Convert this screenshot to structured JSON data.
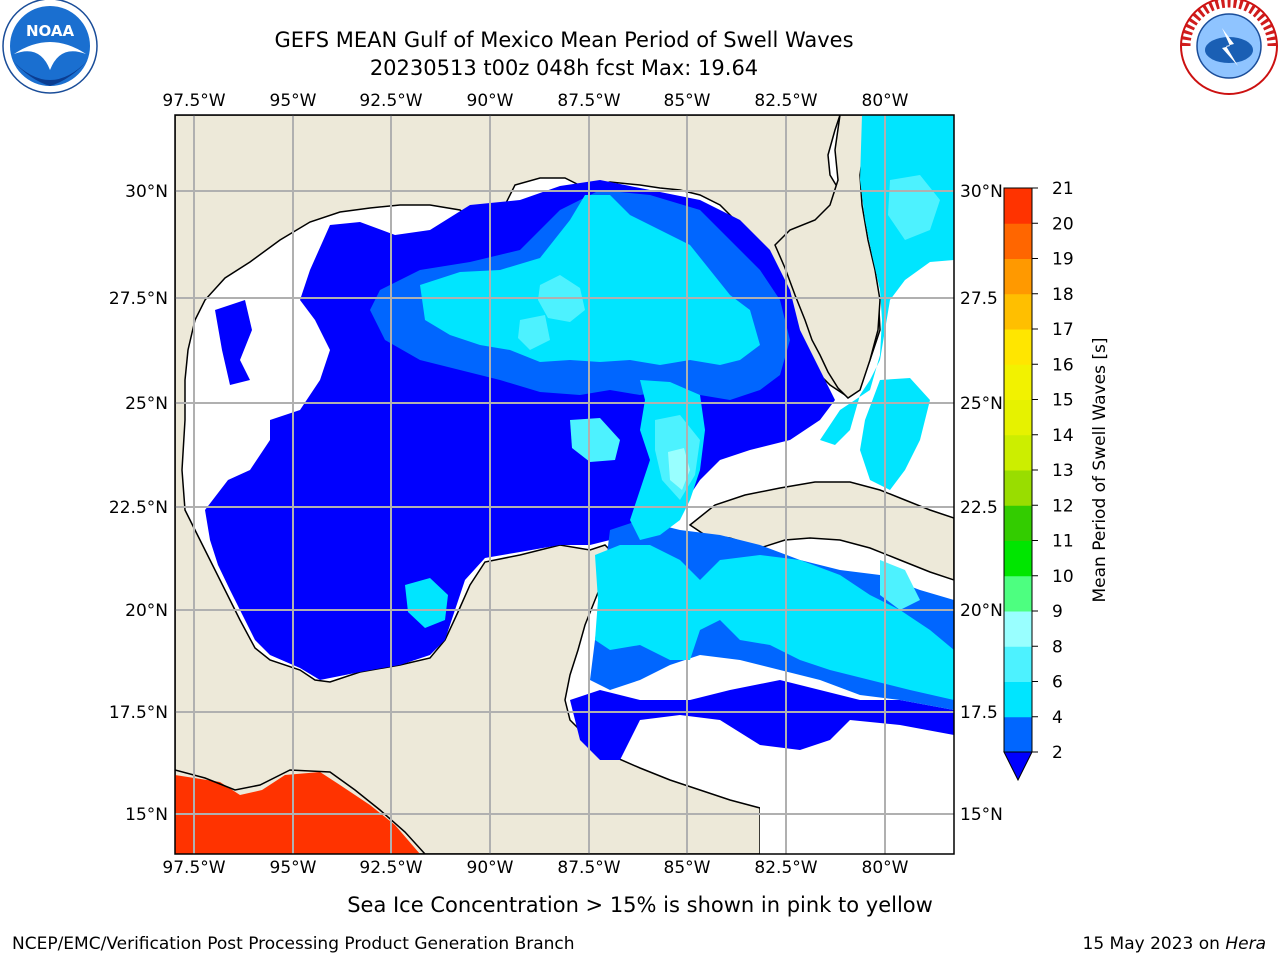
{
  "header": {
    "title_line1": "GEFS MEAN Gulf of Mexico Mean Period of Swell Waves",
    "title_line2": "20230513 t00z 048h fcst   Max: 19.64"
  },
  "logos": {
    "left": {
      "label": "NOAA",
      "ring_text": "NATIONAL OCEANIC AND ATMOSPHERIC ADMINISTRATION · U.S. DEPARTMENT OF COMMERCE"
    },
    "right": {
      "ring_text": "NATIONAL WEATHER SERVICE"
    }
  },
  "map": {
    "lon_labels": [
      "97.5°W",
      "95°W",
      "92.5°W",
      "90°W",
      "87.5°W",
      "85°W",
      "82.5°W",
      "80°W"
    ],
    "lat_labels_left": [
      "30°N",
      "27.5°N",
      "25°N",
      "22.5°N",
      "20°N",
      "17.5°N",
      "15°N"
    ],
    "lat_labels_right": [
      "30°N",
      "27.5",
      "25°N",
      "22.5",
      "20°N",
      "17.5",
      "15°N"
    ],
    "colors": {
      "land": "#ede9d9",
      "ocean_low": "#ffffff",
      "sea_ice": "#ff3300",
      "grid": "#b0b0b0"
    }
  },
  "colorbar": {
    "label": "Mean Period of Swell Waves [s]",
    "ticks": [
      "2",
      "4",
      "6",
      "8",
      "9",
      "10",
      "11",
      "12",
      "13",
      "14",
      "15",
      "16",
      "17",
      "18",
      "19",
      "20",
      "21"
    ],
    "colors": [
      "#0066ff",
      "#00e5ff",
      "#4df2ff",
      "#99ffff",
      "#4dff80",
      "#00e600",
      "#33cc00",
      "#99dd00",
      "#ccee00",
      "#e6f200",
      "#f2f200",
      "#ffe600",
      "#ffbf00",
      "#ff9900",
      "#ff6600",
      "#ff3300",
      "#ff0000"
    ],
    "under_color": "#0000ff"
  },
  "note": "Sea Ice Concentration > 15% is shown in pink to yellow",
  "footer": {
    "left": "NCEP/EMC/Verification Post Processing Product Generation Branch",
    "right_prefix": "15 May 2023 on ",
    "right_machine": "Hera"
  }
}
